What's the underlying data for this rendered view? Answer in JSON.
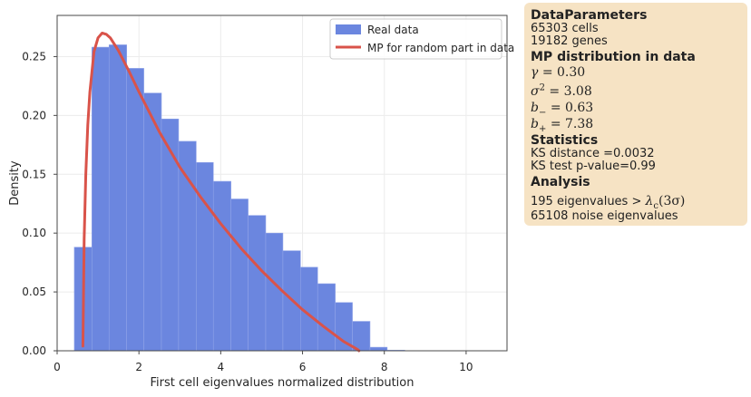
{
  "chart_data": {
    "type": "bar",
    "xlabel": "First cell eigenvalues normalized distribution",
    "ylabel": "Density",
    "xlim": [
      0,
      11
    ],
    "ylim": [
      0,
      0.285
    ],
    "xticks": [
      0,
      2,
      4,
      6,
      8,
      10
    ],
    "yticks": [
      0.0,
      0.05,
      0.1,
      0.15,
      0.2,
      0.25
    ],
    "grid": true,
    "legend_position": "top-right",
    "colors": {
      "bars": "#6b86df",
      "curve": "#d9534a",
      "box": "#f6e3c4"
    },
    "series": [
      {
        "name": "Real data",
        "kind": "histogram",
        "bin_edges": [
          0.42,
          0.85,
          1.27,
          1.7,
          2.12,
          2.55,
          2.97,
          3.4,
          3.82,
          4.25,
          4.67,
          5.1,
          5.52,
          5.95,
          6.37,
          6.8,
          7.22,
          7.65,
          8.07,
          8.5
        ],
        "values": [
          0.088,
          0.258,
          0.26,
          0.24,
          0.219,
          0.197,
          0.178,
          0.16,
          0.144,
          0.129,
          0.115,
          0.1,
          0.085,
          0.071,
          0.057,
          0.041,
          0.025,
          0.003,
          0.0005
        ]
      },
      {
        "name": "MP for random part in data",
        "kind": "line",
        "x": [
          0.63,
          0.66,
          0.7,
          0.75,
          0.8,
          0.9,
          1.0,
          1.1,
          1.2,
          1.3,
          1.5,
          1.75,
          2.0,
          2.5,
          3.0,
          3.5,
          4.0,
          4.5,
          5.0,
          5.5,
          6.0,
          6.5,
          7.0,
          7.2,
          7.3,
          7.35,
          7.38
        ],
        "y": [
          0.004,
          0.095,
          0.15,
          0.192,
          0.22,
          0.254,
          0.266,
          0.27,
          0.269,
          0.266,
          0.255,
          0.238,
          0.22,
          0.186,
          0.156,
          0.131,
          0.108,
          0.087,
          0.068,
          0.051,
          0.035,
          0.021,
          0.008,
          0.004,
          0.002,
          0.001,
          0.0
        ]
      }
    ]
  },
  "info": {
    "data_params_title": "DataParameters",
    "cells": "65303 cells",
    "genes": "19182 genes",
    "mp_title": "MP distribution in data",
    "gamma_symbol": "γ",
    "gamma_value": "= 0.30",
    "sigma_symbol": "σ",
    "sigma_exp": "2",
    "sigma_value": "= 3.08",
    "bminus_symbol": "b",
    "bminus_sub": "−",
    "bminus_value": "= 0.63",
    "bplus_symbol": "b",
    "bplus_sub": "+",
    "bplus_value": "= 7.38",
    "stats_title": "Statistics",
    "ks_distance": "KS distance =0.0032",
    "ks_pvalue": "KS test p-value=0.99",
    "analysis_title": "Analysis",
    "eig_prefix": "195 eigenvalues >",
    "eig_lambda": "λ",
    "eig_sub": "c",
    "eig_suffix": "(3σ)",
    "noise": "65108 noise eigenvalues"
  }
}
